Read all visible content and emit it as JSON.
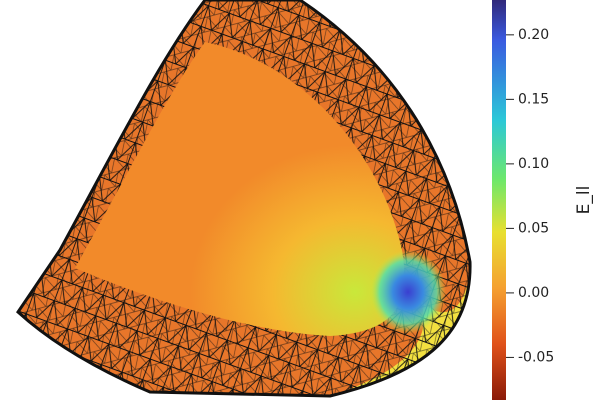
{
  "colorbar": {
    "label": "E_ll",
    "lim": [
      -0.083,
      0.227
    ],
    "ticks": [
      -0.05,
      {
        "value": 0,
        "label": "0.00"
      },
      0.05,
      {
        "value": 0.1,
        "label": "0.10"
      },
      0.15,
      {
        "value": 0.2,
        "label": "0.20"
      }
    ]
  }
}
